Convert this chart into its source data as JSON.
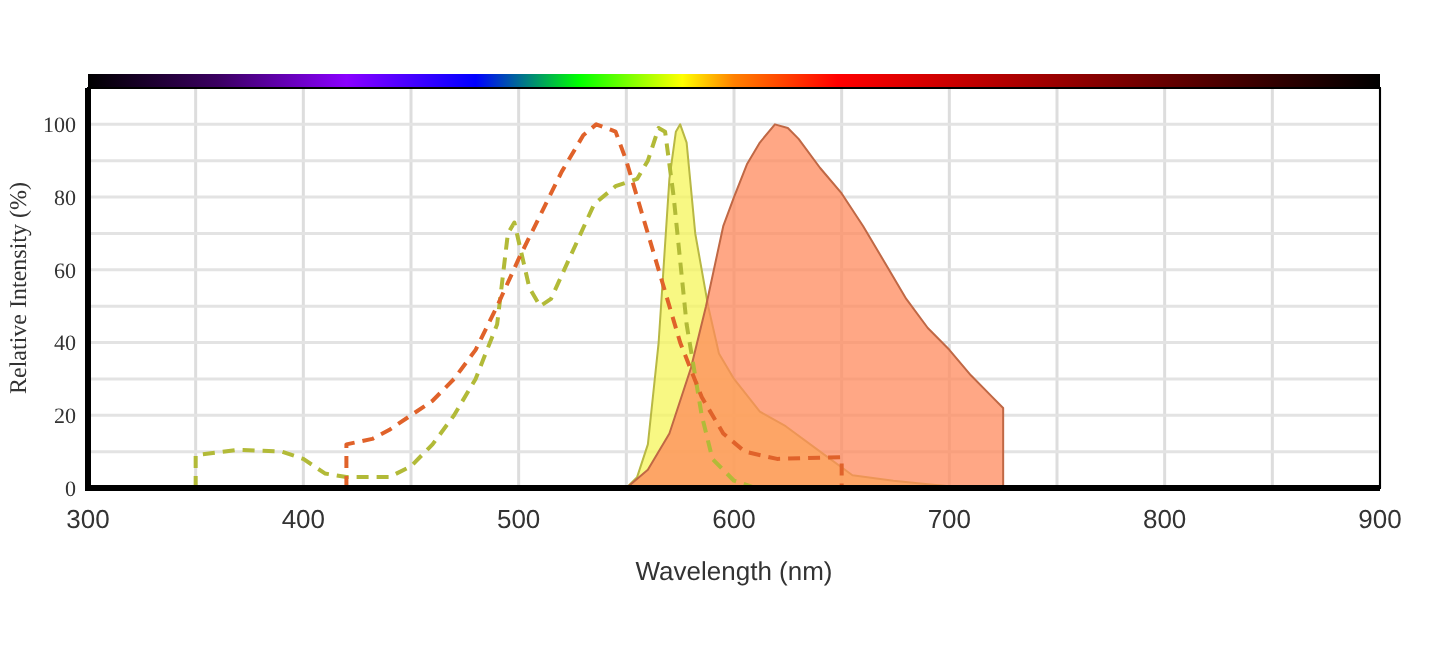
{
  "chart_data": {
    "type": "line",
    "xlabel": "Wavelength (nm)",
    "ylabel": "Relative Intensity (%)",
    "xlim": [
      300,
      900
    ],
    "ylim": [
      0,
      110
    ],
    "xticks": [
      300,
      {
        "value": 350,
        "label": null
      },
      400,
      {
        "value": 450,
        "label": null
      },
      500,
      {
        "value": 550,
        "label": null
      },
      600,
      {
        "value": 650,
        "label": null
      },
      700,
      {
        "value": 750,
        "label": null
      },
      800,
      {
        "value": 850,
        "label": null
      },
      900
    ],
    "yticks": [
      0,
      {
        "value": 10,
        "label": null
      },
      20,
      {
        "value": 30,
        "label": null
      },
      40,
      {
        "value": 50,
        "label": null
      },
      60,
      {
        "value": 70,
        "label": null
      },
      80,
      {
        "value": 90,
        "label": null
      },
      100
    ],
    "grid": true,
    "marker": "none",
    "series": [
      {
        "type": "area",
        "color": "#f5f55a",
        "x": [
          550,
          555,
          560,
          565,
          570,
          573,
          575,
          578,
          582,
          588,
          593,
          600,
          612,
          624,
          640,
          655,
          674,
          690,
          709
        ],
        "values": [
          0,
          3,
          12,
          40,
          85,
          98,
          100,
          95,
          70,
          50,
          37,
          30,
          21,
          17,
          10,
          3.5,
          2,
          1,
          0
        ]
      },
      {
        "type": "area",
        "color": "#ff8a5c",
        "x": [
          550,
          560,
          570,
          580,
          587,
          595,
          600,
          606,
          612,
          619,
          625,
          630,
          640,
          650,
          660,
          670,
          680,
          690,
          700,
          710,
          720,
          725,
          725
        ],
        "values": [
          0,
          5,
          15,
          33,
          50,
          72,
          80,
          89,
          95,
          100,
          99,
          96,
          88,
          81,
          72,
          62,
          52,
          44,
          38,
          31,
          25,
          22,
          0
        ]
      },
      {
        "line_style": "dashed",
        "color": "#b2ba38",
        "x": [
          350,
          350,
          370,
          390,
          400,
          410,
          420,
          440,
          450,
          460,
          470,
          480,
          490,
          495,
          498,
          505,
          510,
          515,
          525,
          535,
          545,
          555,
          560,
          565,
          568,
          572,
          578,
          585,
          590,
          600,
          610,
          750
        ],
        "values": [
          0,
          9,
          10.5,
          10,
          8,
          4,
          3,
          3,
          6,
          12,
          20,
          30,
          45,
          70,
          73,
          55,
          50,
          52,
          65,
          78,
          83,
          85,
          90,
          99,
          98,
          80,
          45,
          20,
          8,
          2,
          0,
          0
        ]
      },
      {
        "line_style": "dashed",
        "color": "#e0622a",
        "x": [
          420,
          420,
          432,
          440,
          450,
          460,
          470,
          480,
          490,
          500,
          510,
          520,
          530,
          536,
          545,
          550,
          555,
          565,
          575,
          585,
          595,
          605,
          620,
          650,
          650
        ],
        "values": [
          0,
          12,
          13.5,
          16,
          20,
          24,
          30,
          38,
          50,
          63,
          75,
          87,
          97,
          100,
          98,
          90,
          80,
          60,
          40,
          25,
          15,
          10,
          8,
          8.5,
          0
        ]
      }
    ]
  }
}
